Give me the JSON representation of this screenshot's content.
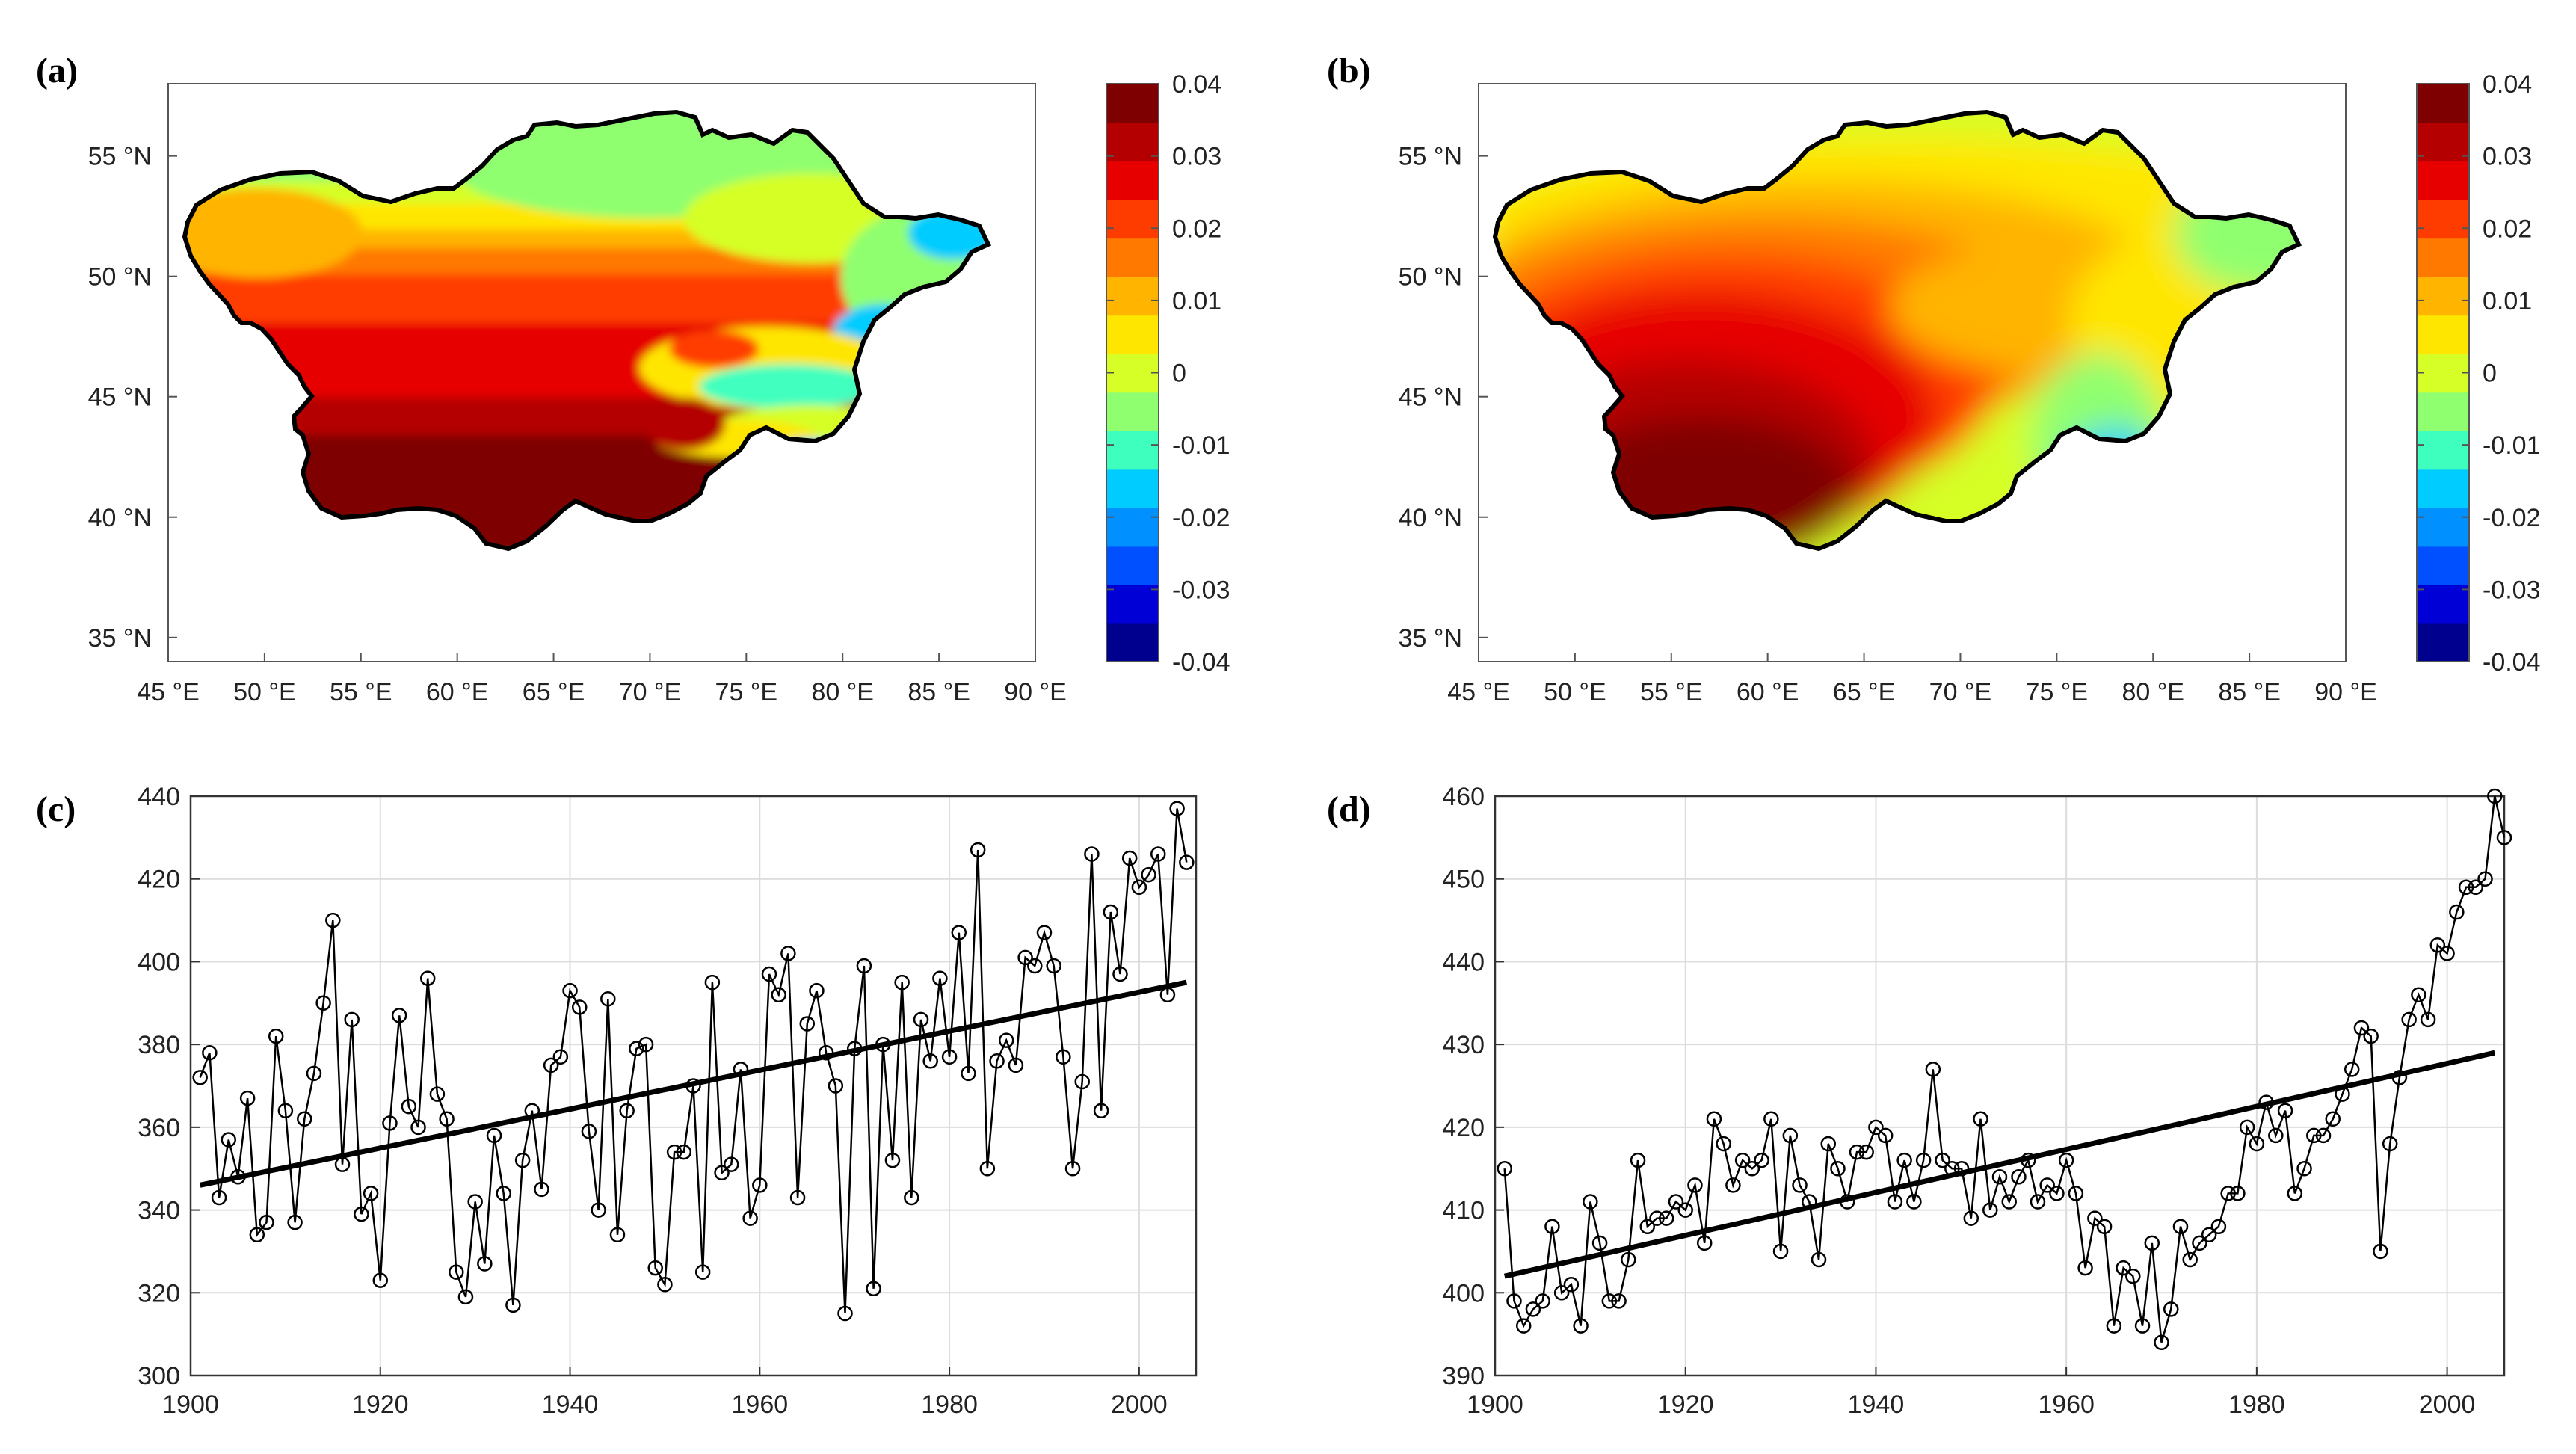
{
  "panels": [
    {
      "id": "a",
      "label": "(a)",
      "type": "map",
      "lon_ticks": [
        "45 °E",
        "50 °E",
        "55 °E",
        "60 °E",
        "65 °E",
        "70 °E",
        "75 °E",
        "80 °E",
        "85 °E",
        "90 °E"
      ],
      "lat_ticks": [
        "55 °N",
        "50 °N",
        "45 °N",
        "40 °N",
        "35 °N"
      ],
      "colorbar": {
        "min": -0.04,
        "max": 0.04,
        "ticks": [
          "0.04",
          "0.03",
          "0.02",
          "0.01",
          "0",
          "-0.01",
          "-0.02",
          "-0.03",
          "-0.04"
        ]
      }
    },
    {
      "id": "b",
      "label": "(b)",
      "type": "map",
      "lon_ticks": [
        "45 °E",
        "50 °E",
        "55 °E",
        "60 °E",
        "65 °E",
        "70 °E",
        "75 °E",
        "80 °E",
        "85 °E",
        "90 °E"
      ],
      "lat_ticks": [
        "55 °N",
        "50 °N",
        "45 °N",
        "40 °N",
        "35 °N"
      ],
      "colorbar": {
        "min": -0.04,
        "max": 0.04,
        "ticks": [
          "0.04",
          "0.03",
          "0.02",
          "0.01",
          "0",
          "-0.01",
          "-0.02",
          "-0.03",
          "-0.04"
        ]
      }
    }
  ],
  "colormap": [
    "#00008f",
    "#0000d6",
    "#0050ff",
    "#0090ff",
    "#00ccff",
    "#3fffbf",
    "#8fff70",
    "#d6ff28",
    "#ffe600",
    "#ffb400",
    "#ff7800",
    "#ff3c00",
    "#e60000",
    "#b40000",
    "#7f0000"
  ],
  "chart_data": [
    {
      "id": "c",
      "label": "(c)",
      "type": "line",
      "xlim": [
        1900,
        2006
      ],
      "ylim": [
        300,
        440
      ],
      "xticks": [
        1900,
        1920,
        1940,
        1960,
        1980,
        2000
      ],
      "yticks": [
        300,
        320,
        340,
        360,
        380,
        400,
        420,
        440
      ],
      "x_start": 1901,
      "values": [
        372,
        378,
        343,
        357,
        348,
        367,
        334,
        337,
        382,
        364,
        337,
        362,
        373,
        390,
        410,
        351,
        386,
        339,
        344,
        323,
        361,
        387,
        365,
        360,
        396,
        368,
        362,
        325,
        319,
        342,
        327,
        358,
        344,
        317,
        352,
        364,
        345,
        375,
        377,
        393,
        389,
        359,
        340,
        391,
        334,
        364,
        379,
        380,
        326,
        322,
        354,
        354,
        370,
        325,
        395,
        349,
        351,
        374,
        338,
        346,
        397,
        392,
        402,
        343,
        385,
        393,
        378,
        370,
        315,
        379,
        399,
        321,
        380,
        352,
        395,
        343,
        386,
        376,
        396,
        377,
        407,
        373,
        427,
        350,
        376,
        381,
        375,
        401,
        399,
        407,
        399,
        377,
        350,
        371,
        426,
        364,
        412,
        397,
        425,
        418,
        421,
        426,
        392,
        437,
        424
      ],
      "trend": {
        "x": [
          1901,
          2005
        ],
        "y": [
          346,
          395
        ]
      },
      "marker": "open-circle",
      "color": "#000000"
    },
    {
      "id": "d",
      "label": "(d)",
      "type": "line",
      "xlim": [
        1900,
        2006
      ],
      "ylim": [
        390,
        460
      ],
      "xticks": [
        1900,
        1920,
        1940,
        1960,
        1980,
        2000
      ],
      "yticks": [
        390,
        400,
        410,
        420,
        430,
        440,
        450,
        460
      ],
      "x_start": 1901,
      "values": [
        415,
        399,
        396,
        398,
        399,
        408,
        400,
        401,
        396,
        411,
        406,
        399,
        399,
        404,
        416,
        408,
        409,
        409,
        411,
        410,
        413,
        406,
        421,
        418,
        413,
        416,
        415,
        416,
        421,
        405,
        419,
        413,
        411,
        404,
        418,
        415,
        411,
        417,
        417,
        420,
        419,
        411,
        416,
        411,
        416,
        427,
        416,
        415,
        415,
        409,
        421,
        410,
        414,
        411,
        414,
        416,
        411,
        413,
        412,
        416,
        412,
        403,
        409,
        408,
        396,
        403,
        402,
        396,
        406,
        394,
        398,
        408,
        404,
        406,
        407,
        408,
        412,
        412,
        420,
        418,
        423,
        419,
        422,
        412,
        415,
        419,
        419,
        421,
        424,
        427,
        432,
        431,
        405,
        418,
        426,
        433,
        436,
        433,
        442,
        441,
        446,
        449,
        449,
        450,
        460,
        455
      ],
      "trend": {
        "x": [
          1901,
          2005
        ],
        "y": [
          402,
          429
        ]
      },
      "marker": "open-circle",
      "color": "#000000"
    }
  ]
}
